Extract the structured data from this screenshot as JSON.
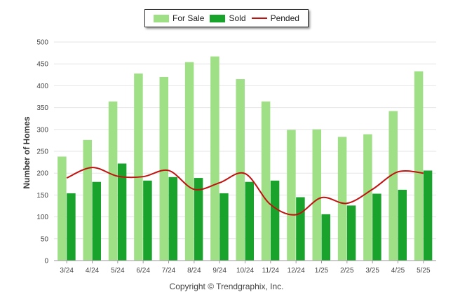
{
  "chart_data": {
    "type": "bar",
    "title": "",
    "xlabel": "",
    "ylabel": "Number of Homes",
    "ylim": [
      0,
      500
    ],
    "yticks": [
      0,
      50,
      100,
      150,
      200,
      250,
      300,
      350,
      400,
      450,
      500
    ],
    "categories": [
      "3/24",
      "4/24",
      "5/24",
      "6/24",
      "7/24",
      "8/24",
      "9/24",
      "10/24",
      "11/24",
      "12/24",
      "1/25",
      "2/25",
      "3/25",
      "4/25",
      "5/25"
    ],
    "series": [
      {
        "name": "For Sale",
        "kind": "bar",
        "color": "#9fdf85",
        "values": [
          238,
          276,
          364,
          428,
          420,
          454,
          467,
          415,
          364,
          299,
          300,
          283,
          289,
          342,
          433
        ]
      },
      {
        "name": "Sold",
        "kind": "bar",
        "color": "#1aa32c",
        "values": [
          154,
          180,
          222,
          183,
          191,
          189,
          154,
          180,
          183,
          145,
          106,
          126,
          153,
          162,
          206
        ]
      },
      {
        "name": "Pended",
        "kind": "line",
        "color": "#c0120f",
        "values": [
          189,
          213,
          193,
          192,
          206,
          163,
          178,
          199,
          128,
          105,
          144,
          131,
          163,
          203,
          200
        ]
      }
    ],
    "grid": true,
    "legend_position": "top-center"
  },
  "footer": "Copyright © Trendgraphix, Inc."
}
